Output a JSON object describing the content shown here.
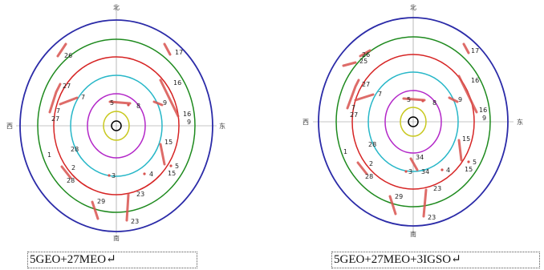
{
  "captions": {
    "left": "5GEO+27MEO↵",
    "right": "5GEO+27MEO+3IGSO↵"
  },
  "directions": {
    "north": "北",
    "south": "南",
    "west": "西",
    "east": "东"
  },
  "colors": {
    "ring_outer": "#2b2ba8",
    "ring_60": "#1e8a1e",
    "ring_45": "#d62424",
    "ring_30": "#27b7c8",
    "ring_15": "#b327c8",
    "ring_5": "#c8c81e",
    "center": "#000000",
    "track": "#d9534f",
    "axis": "#8c8c8c"
  },
  "satellites_left": [
    {
      "label": "26"
    },
    {
      "label": "17"
    },
    {
      "label": "27"
    },
    {
      "label": "7"
    },
    {
      "label": "16"
    },
    {
      "label": "5"
    },
    {
      "label": "8"
    },
    {
      "label": "9"
    },
    {
      "label": "7"
    },
    {
      "label": "27"
    },
    {
      "label": "16"
    },
    {
      "label": "9"
    },
    {
      "label": "28"
    },
    {
      "label": "15"
    },
    {
      "label": "1"
    },
    {
      "label": "2"
    },
    {
      "label": "5"
    },
    {
      "label": "28"
    },
    {
      "label": "3"
    },
    {
      "label": "4"
    },
    {
      "label": "15"
    },
    {
      "label": "23"
    },
    {
      "label": "29"
    },
    {
      "label": "23"
    }
  ],
  "satellites_right": [
    {
      "label": "26"
    },
    {
      "label": "25"
    },
    {
      "label": "17"
    },
    {
      "label": "27"
    },
    {
      "label": "7"
    },
    {
      "label": "16"
    },
    {
      "label": "5"
    },
    {
      "label": "8"
    },
    {
      "label": "9"
    },
    {
      "label": "7"
    },
    {
      "label": "27"
    },
    {
      "label": "16"
    },
    {
      "label": "9"
    },
    {
      "label": "28"
    },
    {
      "label": "15"
    },
    {
      "label": "1"
    },
    {
      "label": "2"
    },
    {
      "label": "34"
    },
    {
      "label": "5"
    },
    {
      "label": "28"
    },
    {
      "label": "3"
    },
    {
      "label": "34"
    },
    {
      "label": "4"
    },
    {
      "label": "15"
    },
    {
      "label": "23"
    },
    {
      "label": "29"
    },
    {
      "label": "23"
    }
  ]
}
